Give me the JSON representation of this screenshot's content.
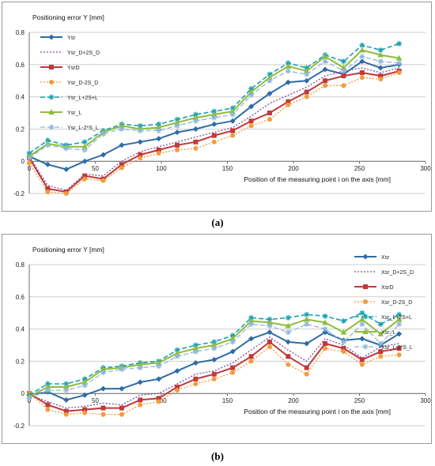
{
  "chart_data": [
    {
      "type": "line",
      "title": "Positioning error Y [mm]",
      "xlabel": "Position of the measuring point i on the axis [mm]",
      "ylabel": "",
      "xlim": [
        0,
        300
      ],
      "ylim": [
        -0.2,
        0.8
      ],
      "xticks": [
        0,
        50,
        100,
        150,
        200,
        250,
        300
      ],
      "yticks": [
        -0.2,
        0,
        0.2,
        0.4,
        0.6,
        0.8
      ],
      "grid": "horizontal",
      "legend_position": "top-left",
      "caption": "(a)",
      "x": [
        0,
        14,
        28,
        42,
        56,
        70,
        84,
        98,
        112,
        126,
        140,
        154,
        168,
        182,
        196,
        210,
        224,
        238,
        252,
        266,
        280
      ],
      "series": [
        {
          "name": "Ysr",
          "color": "#2e6ca4",
          "dash": "",
          "marker": "diamond",
          "width": 2,
          "values": [
            0.03,
            -0.02,
            -0.05,
            0.0,
            0.04,
            0.1,
            0.12,
            0.14,
            0.18,
            0.2,
            0.23,
            0.25,
            0.34,
            0.42,
            0.49,
            0.5,
            0.57,
            0.54,
            0.62,
            0.58,
            0.6
          ]
        },
        {
          "name": "Ysr_D+2S_D",
          "color": "#7b4f9d",
          "dash": "2,2",
          "marker": "none",
          "width": 1.3,
          "values": [
            0.03,
            -0.15,
            -0.18,
            -0.08,
            -0.09,
            0.0,
            0.06,
            0.09,
            0.12,
            0.15,
            0.18,
            0.21,
            0.28,
            0.36,
            0.41,
            0.46,
            0.53,
            0.56,
            0.58,
            0.55,
            0.58
          ]
        },
        {
          "name": "YsrD",
          "color": "#c0393b",
          "dash": "",
          "marker": "square",
          "width": 2,
          "values": [
            0.02,
            -0.17,
            -0.19,
            -0.09,
            -0.11,
            -0.02,
            0.04,
            0.07,
            0.1,
            0.12,
            0.16,
            0.19,
            0.25,
            0.3,
            0.37,
            0.43,
            0.5,
            0.53,
            0.55,
            0.53,
            0.56
          ]
        },
        {
          "name": "Ysr_D-2S_D",
          "color": "#f39c3c",
          "dash": "2,2",
          "marker": "circle",
          "width": 1.3,
          "values": [
            -0.01,
            -0.19,
            -0.2,
            -0.11,
            -0.12,
            -0.04,
            0.02,
            0.05,
            0.07,
            0.08,
            0.12,
            0.16,
            0.22,
            0.26,
            0.35,
            0.4,
            0.47,
            0.47,
            0.52,
            0.51,
            0.55
          ]
        },
        {
          "name": "Ysr_L+2S+L",
          "color": "#1aa0b0",
          "dash": "6,3",
          "marker": "star",
          "width": 1.6,
          "values": [
            0.05,
            0.13,
            0.1,
            0.12,
            0.19,
            0.23,
            0.22,
            0.23,
            0.26,
            0.29,
            0.31,
            0.33,
            0.45,
            0.54,
            0.61,
            0.58,
            0.66,
            0.62,
            0.72,
            0.69,
            0.73
          ]
        },
        {
          "name": "Ysr_L",
          "color": "#8fbc3c",
          "dash": "",
          "marker": "triangle",
          "width": 2,
          "values": [
            0.03,
            0.11,
            0.09,
            0.09,
            0.18,
            0.22,
            0.2,
            0.21,
            0.24,
            0.27,
            0.29,
            0.31,
            0.43,
            0.52,
            0.59,
            0.56,
            0.65,
            0.58,
            0.69,
            0.66,
            0.64
          ]
        },
        {
          "name": "Ysr_L-2*S_L",
          "color": "#8fb7dd",
          "dash": "6,3",
          "marker": "star",
          "width": 1.3,
          "values": [
            0.02,
            0.1,
            0.08,
            0.07,
            0.17,
            0.2,
            0.19,
            0.19,
            0.22,
            0.25,
            0.27,
            0.29,
            0.41,
            0.5,
            0.56,
            0.54,
            0.62,
            0.56,
            0.65,
            0.62,
            0.61
          ]
        }
      ]
    },
    {
      "type": "line",
      "title": "Positioning error Y [mm]",
      "xlabel": "Position of the measuring point i on the axis [mm]",
      "ylabel": "",
      "xlim": [
        0,
        300
      ],
      "ylim": [
        -0.2,
        0.8
      ],
      "xticks": [
        0,
        50,
        100,
        150,
        200,
        250,
        300
      ],
      "yticks": [
        -0.2,
        0,
        0.2,
        0.4,
        0.6,
        0.8
      ],
      "grid": "horizontal",
      "legend_position": "top-right",
      "caption": "(b)",
      "x": [
        0,
        14,
        28,
        42,
        56,
        70,
        84,
        98,
        112,
        126,
        140,
        154,
        168,
        182,
        196,
        210,
        224,
        238,
        252,
        266,
        280
      ],
      "series": [
        {
          "name": "Xsr",
          "color": "#2e6ca4",
          "dash": "",
          "marker": "diamond",
          "width": 2,
          "values": [
            -0.01,
            0.01,
            -0.04,
            -0.01,
            0.03,
            0.03,
            0.07,
            0.09,
            0.14,
            0.19,
            0.21,
            0.26,
            0.34,
            0.38,
            0.32,
            0.31,
            0.38,
            0.33,
            0.34,
            0.3,
            0.37
          ]
        },
        {
          "name": "Xsr_D+2S_D",
          "color": "#7b4f9d",
          "dash": "2,2",
          "marker": "none",
          "width": 1.3,
          "values": [
            -0.01,
            -0.05,
            -0.09,
            -0.08,
            -0.06,
            -0.07,
            -0.01,
            0.0,
            0.06,
            0.12,
            0.14,
            0.19,
            0.27,
            0.35,
            0.27,
            0.2,
            0.34,
            0.3,
            0.22,
            0.29,
            0.31
          ]
        },
        {
          "name": "XsrD",
          "color": "#c0393b",
          "dash": "",
          "marker": "square",
          "width": 2,
          "values": [
            0.0,
            -0.07,
            -0.11,
            -0.1,
            -0.09,
            -0.09,
            -0.04,
            -0.03,
            0.04,
            0.09,
            0.12,
            0.16,
            0.23,
            0.32,
            0.23,
            0.16,
            0.31,
            0.28,
            0.21,
            0.26,
            0.28
          ]
        },
        {
          "name": "Xsr_D-2S_D",
          "color": "#f39c3c",
          "dash": "2,2",
          "marker": "circle",
          "width": 1.3,
          "values": [
            0.0,
            -0.1,
            -0.13,
            -0.12,
            -0.13,
            -0.13,
            -0.07,
            -0.05,
            0.02,
            0.06,
            0.09,
            0.13,
            0.2,
            0.29,
            0.18,
            0.12,
            0.28,
            0.26,
            0.18,
            0.23,
            0.24
          ]
        },
        {
          "name": "Xsr_L+2S+L",
          "color": "#1aa0b0",
          "dash": "6,3",
          "marker": "star",
          "width": 1.6,
          "values": [
            -0.01,
            0.06,
            0.06,
            0.09,
            0.16,
            0.17,
            0.19,
            0.2,
            0.27,
            0.3,
            0.32,
            0.36,
            0.47,
            0.46,
            0.47,
            0.49,
            0.48,
            0.45,
            0.5,
            0.43,
            0.49
          ]
        },
        {
          "name": "Xsr_L",
          "color": "#8fbc3c",
          "dash": "",
          "marker": "triangle",
          "width": 2,
          "values": [
            -0.02,
            0.04,
            0.04,
            0.07,
            0.15,
            0.16,
            0.18,
            0.19,
            0.25,
            0.28,
            0.3,
            0.34,
            0.45,
            0.44,
            0.42,
            0.46,
            0.44,
            0.38,
            0.46,
            0.37,
            0.46
          ]
        },
        {
          "name": "Xsr_L-2*S_L",
          "color": "#8fb7dd",
          "dash": "6,3",
          "marker": "star",
          "width": 1.3,
          "values": [
            -0.03,
            0.02,
            0.02,
            0.05,
            0.13,
            0.15,
            0.16,
            0.17,
            0.23,
            0.26,
            0.28,
            0.32,
            0.43,
            0.42,
            0.38,
            0.43,
            0.4,
            0.32,
            0.43,
            0.31,
            0.43
          ]
        }
      ]
    }
  ]
}
